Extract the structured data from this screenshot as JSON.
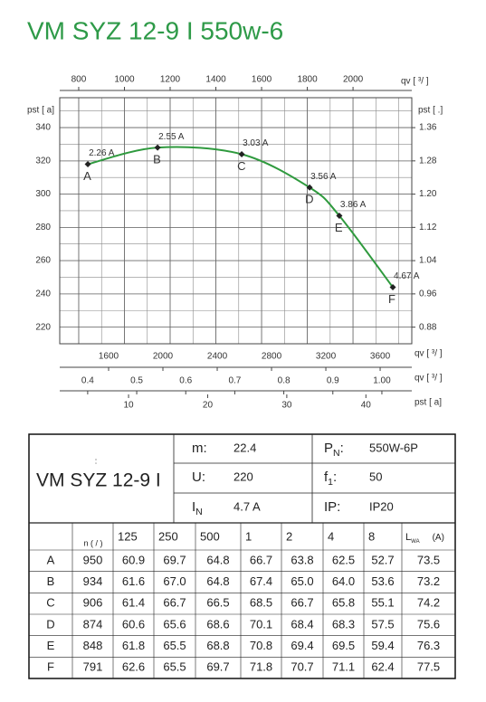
{
  "title": "VM SYZ 12-9 I 550w-6",
  "chart_data": {
    "type": "line",
    "x_label": "qv [  ³/    ]",
    "xlim": [
      717,
      2257
    ],
    "xticks": [
      800,
      1000,
      1200,
      1400,
      1600,
      1800,
      2000
    ],
    "y_label": "pst [   a]",
    "ylim": [
      210,
      358
    ],
    "yticks": [
      220,
      240,
      260,
      280,
      300,
      320,
      340
    ],
    "y2_label": "pst [      .]",
    "y2lim": [
      0.84,
      1.432
    ],
    "y2ticks": [
      0.88,
      0.96,
      {
        "value": 1.04,
        "label": "1.04"
      },
      1.12,
      {
        "value": 1.2,
        "label": "1.20"
      },
      1.28,
      1.36
    ],
    "grid": true,
    "secondary_x_axes": [
      {
        "label": "qv [  ³/   ]",
        "lim": [
          1240,
          3833
        ],
        "ticks": [
          1600,
          2000,
          2400,
          2800,
          3200,
          3600
        ]
      },
      {
        "label": "qv [  ³/   ]",
        "lim": [
          0.343,
          1.061
        ],
        "ticks": [
          0.4,
          0.5,
          0.6,
          0.7,
          0.8,
          0.9,
          {
            "value": 1,
            "label": "1.00"
          }
        ]
      },
      {
        "label": "pst [   a]",
        "lim": [
          1.3,
          45.8
        ],
        "ticks": [
          10,
          20,
          30,
          40
        ]
      }
    ],
    "x": [
      840,
      1145,
      1513,
      1810,
      1940,
      2174
    ],
    "series": [
      {
        "color": "#2f9a3e",
        "values": [
          318,
          328,
          324,
          304,
          287,
          244
        ]
      }
    ],
    "point_labels": [
      "A",
      "B",
      "C",
      "D",
      "E",
      "F"
    ],
    "annotations": [
      "2.26 A",
      "2.55 A",
      "3.03 A",
      "3.56 A",
      "3.86 A",
      "4.67 A"
    ]
  },
  "table": {
    "model_note": ":",
    "model": "VM SYZ 12-9 I",
    "specs": [
      {
        "label": "m:",
        "value": "22.4"
      },
      {
        "label": "U:",
        "value": "220"
      },
      {
        "label": "I",
        "sub": "N",
        "value": "4.7  A"
      },
      {
        "label": "P",
        "sub": "N",
        "tail": ":",
        "value": "550W-6P"
      },
      {
        "label": "f",
        "sub": "1",
        "tail": ":",
        "value": "50"
      },
      {
        "label": "IP:",
        "value": "IP20"
      }
    ],
    "columns": [
      "n (  /  )",
      "125",
      "250",
      "500",
      "1",
      "2",
      "4",
      "8"
    ],
    "last_column": {
      "label": "L",
      "sub": "WA",
      "unit": "(A)"
    },
    "rows": [
      [
        "A",
        "950",
        "60.9",
        "69.7",
        "64.8",
        "66.7",
        "63.8",
        "62.5",
        "52.7",
        "73.5"
      ],
      [
        "B",
        "934",
        "61.6",
        "67.0",
        "64.8",
        "67.4",
        "65.0",
        "64.0",
        "53.6",
        "73.2"
      ],
      [
        "C",
        "906",
        "61.4",
        "66.7",
        "66.5",
        "68.5",
        "66.7",
        "65.8",
        "55.1",
        "74.2"
      ],
      [
        "D",
        "874",
        "60.6",
        "65.6",
        "68.6",
        "70.1",
        "68.4",
        "68.3",
        "57.5",
        "75.6"
      ],
      [
        "E",
        "848",
        "61.8",
        "65.5",
        "68.8",
        "70.8",
        "69.4",
        "69.5",
        "59.4",
        "76.3"
      ],
      [
        "F",
        "791",
        "62.6",
        "65.5",
        "69.7",
        "71.8",
        "70.7",
        "71.1",
        "62.4",
        "77.5"
      ]
    ]
  }
}
